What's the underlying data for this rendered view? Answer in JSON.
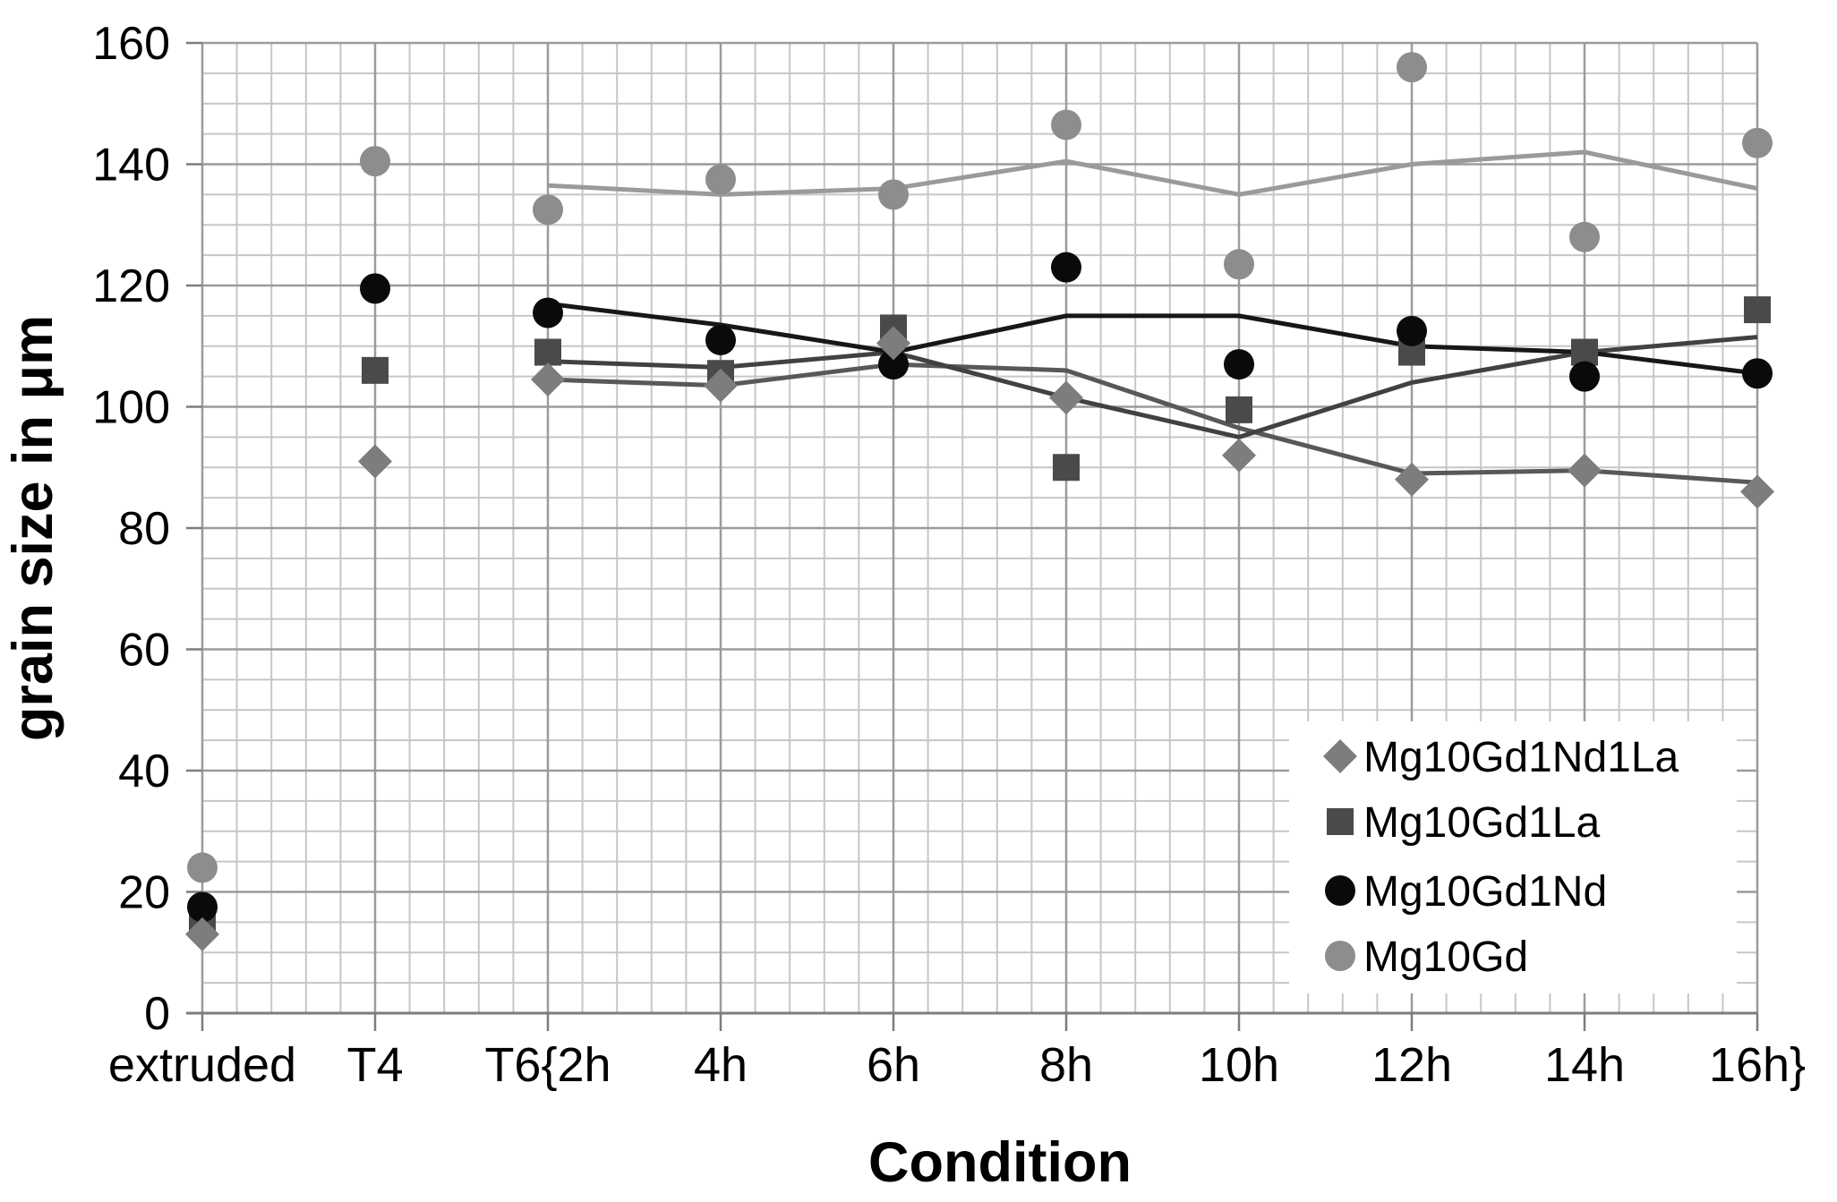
{
  "page": {
    "background": "#ffffff"
  },
  "chart_data": {
    "type": "scatter",
    "title": "",
    "xlabel": "Condition",
    "ylabel": "grain size in μm",
    "categories": [
      "extruded",
      "T4",
      "T6{2h",
      "4h",
      "6h",
      "8h",
      "10h",
      "12h",
      "14h",
      "16h}"
    ],
    "y_ticks": [
      0,
      20,
      40,
      60,
      80,
      100,
      120,
      140,
      160
    ],
    "ylim": [
      0,
      160
    ],
    "y_minor_step": 5,
    "x_minor_divisions_per_category": 5,
    "grid": "square minor grid with darker major lines",
    "legend_position": "inside-bottom-right",
    "colors": {
      "minor_grid": "#c6c6c6",
      "major_grid": "#9b9b9b",
      "axis": "#7d7d7d",
      "legend_background": "#ffffff"
    },
    "series": [
      {
        "name": "Mg10Gd1Nd1La",
        "marker": "diamond",
        "color": "#7d7d7d",
        "line_color": "#585858",
        "values": [
          13,
          91,
          104.5,
          103.5,
          110.5,
          101.5,
          92,
          88,
          89.5,
          86
        ],
        "trendline": {
          "start_index": 2,
          "values": [
            104.5,
            103.5,
            107,
            106,
            96.5,
            89,
            89.5,
            87.5
          ]
        }
      },
      {
        "name": "Mg10Gd1La",
        "marker": "square",
        "color": "#4a4a4a",
        "line_color": "#414141",
        "values": [
          15.5,
          106,
          109,
          105.5,
          113,
          90,
          99.5,
          109,
          109,
          116
        ],
        "trendline": {
          "start_index": 2,
          "values": [
            107.5,
            106.5,
            109,
            101.5,
            95,
            104,
            109,
            111.5
          ]
        }
      },
      {
        "name": "Mg10Gd1Nd",
        "marker": "circle",
        "color": "#0a0a0a",
        "line_color": "#171717",
        "values": [
          17.5,
          119.5,
          115.5,
          111,
          107,
          123,
          107,
          112.5,
          105,
          105.5
        ],
        "trendline": {
          "start_index": 2,
          "values": [
            117,
            113.5,
            109,
            115,
            115,
            110,
            109,
            105.5
          ]
        }
      },
      {
        "name": "Mg10Gd",
        "marker": "circle",
        "color": "#8d8d8d",
        "line_color": "#9a9a9a",
        "values": [
          24,
          140.5,
          132.5,
          137.5,
          135,
          146.5,
          123.5,
          156,
          128,
          143.5
        ],
        "trendline": {
          "start_index": 2,
          "values": [
            136.5,
            135,
            136,
            140.5,
            135,
            140,
            142,
            136
          ]
        }
      }
    ]
  }
}
